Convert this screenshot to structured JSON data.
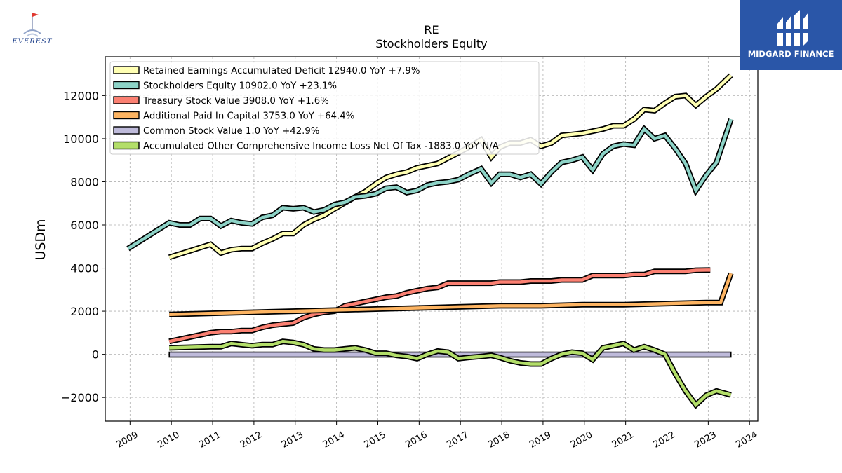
{
  "logos": {
    "left_text": "EVEREST",
    "right_text": "MIDGARD FINANCE",
    "right_bg": "#2a56a8"
  },
  "chart_data": {
    "type": "line",
    "title": "RE",
    "subtitle": "Stockholders  Equity",
    "ylabel": "USDm",
    "xlabel": "",
    "xlim": [
      2008.4,
      2024.2
    ],
    "ylim": [
      -3100,
      13800
    ],
    "yticks": [
      -2000,
      0,
      2000,
      4000,
      6000,
      8000,
      10000,
      12000
    ],
    "ytick_labels": [
      "−2000",
      "0",
      "2000",
      "4000",
      "6000",
      "8000",
      "10000",
      "12000"
    ],
    "xticks": [
      2009,
      2010,
      2011,
      2012,
      2013,
      2014,
      2015,
      2016,
      2017,
      2018,
      2019,
      2020,
      2021,
      2022,
      2023,
      2024
    ],
    "xtick_labels": [
      "2009",
      "2010",
      "2011",
      "2012",
      "2013",
      "2014",
      "2015",
      "2016",
      "2017",
      "2018",
      "2019",
      "2020",
      "2021",
      "2022",
      "2023",
      "2024"
    ],
    "grid": true,
    "legend_position": "top-left",
    "series": [
      {
        "name": "Retained Earnings Accumulated Deficit  12940.0 YoY +7.9%",
        "color": "#ffffb3",
        "points": [
          [
            2009.95,
            4500
          ],
          [
            2010.95,
            5100
          ],
          [
            2011.2,
            4700
          ],
          [
            2011.45,
            4850
          ],
          [
            2011.7,
            4900
          ],
          [
            2011.95,
            4900
          ],
          [
            2012.2,
            5150
          ],
          [
            2012.45,
            5350
          ],
          [
            2012.7,
            5600
          ],
          [
            2012.95,
            5600
          ],
          [
            2013.2,
            6000
          ],
          [
            2013.45,
            6250
          ],
          [
            2013.7,
            6450
          ],
          [
            2013.95,
            6750
          ],
          [
            2014.45,
            7300
          ],
          [
            2014.7,
            7550
          ],
          [
            2014.95,
            7900
          ],
          [
            2015.2,
            8200
          ],
          [
            2015.45,
            8350
          ],
          [
            2015.7,
            8450
          ],
          [
            2015.95,
            8650
          ],
          [
            2016.2,
            8750
          ],
          [
            2016.45,
            8850
          ],
          [
            2016.7,
            9100
          ],
          [
            2016.95,
            9350
          ],
          [
            2017.2,
            9600
          ],
          [
            2017.5,
            9950
          ],
          [
            2017.75,
            9150
          ],
          [
            2017.95,
            9600
          ],
          [
            2018.2,
            9800
          ],
          [
            2018.45,
            9800
          ],
          [
            2018.7,
            9950
          ],
          [
            2018.95,
            9650
          ],
          [
            2019.2,
            9800
          ],
          [
            2019.45,
            10150
          ],
          [
            2019.7,
            10200
          ],
          [
            2019.95,
            10250
          ],
          [
            2020.2,
            10350
          ],
          [
            2020.45,
            10450
          ],
          [
            2020.7,
            10600
          ],
          [
            2020.95,
            10600
          ],
          [
            2021.2,
            10900
          ],
          [
            2021.45,
            11350
          ],
          [
            2021.7,
            11300
          ],
          [
            2021.95,
            11650
          ],
          [
            2022.2,
            11950
          ],
          [
            2022.45,
            12000
          ],
          [
            2022.7,
            11550
          ],
          [
            2022.95,
            11950
          ],
          [
            2023.2,
            12300
          ],
          [
            2023.55,
            12940
          ]
        ]
      },
      {
        "name": "Stockholders Equity  10902.0 YoY +23.1%",
        "color": "#8dd3c7",
        "points": [
          [
            2008.95,
            4900
          ],
          [
            2009.95,
            6100
          ],
          [
            2010.2,
            6000
          ],
          [
            2010.45,
            6000
          ],
          [
            2010.7,
            6300
          ],
          [
            2010.95,
            6300
          ],
          [
            2011.2,
            5950
          ],
          [
            2011.45,
            6200
          ],
          [
            2011.7,
            6100
          ],
          [
            2011.95,
            6050
          ],
          [
            2012.2,
            6350
          ],
          [
            2012.45,
            6450
          ],
          [
            2012.7,
            6800
          ],
          [
            2012.95,
            6750
          ],
          [
            2013.2,
            6800
          ],
          [
            2013.45,
            6600
          ],
          [
            2013.7,
            6700
          ],
          [
            2013.95,
            6950
          ],
          [
            2014.2,
            7050
          ],
          [
            2014.45,
            7300
          ],
          [
            2014.7,
            7350
          ],
          [
            2014.95,
            7450
          ],
          [
            2015.2,
            7700
          ],
          [
            2015.45,
            7750
          ],
          [
            2015.7,
            7500
          ],
          [
            2015.95,
            7600
          ],
          [
            2016.2,
            7850
          ],
          [
            2016.45,
            7950
          ],
          [
            2016.7,
            8000
          ],
          [
            2016.95,
            8100
          ],
          [
            2017.2,
            8350
          ],
          [
            2017.5,
            8600
          ],
          [
            2017.75,
            7950
          ],
          [
            2017.95,
            8350
          ],
          [
            2018.2,
            8350
          ],
          [
            2018.45,
            8200
          ],
          [
            2018.7,
            8350
          ],
          [
            2018.95,
            7900
          ],
          [
            2019.2,
            8450
          ],
          [
            2019.45,
            8900
          ],
          [
            2019.7,
            9000
          ],
          [
            2019.95,
            9150
          ],
          [
            2020.2,
            8550
          ],
          [
            2020.45,
            9300
          ],
          [
            2020.7,
            9650
          ],
          [
            2020.95,
            9750
          ],
          [
            2021.2,
            9700
          ],
          [
            2021.45,
            10450
          ],
          [
            2021.7,
            10000
          ],
          [
            2021.95,
            10150
          ],
          [
            2022.2,
            9550
          ],
          [
            2022.45,
            8850
          ],
          [
            2022.7,
            7600
          ],
          [
            2022.95,
            8300
          ],
          [
            2023.2,
            8900
          ],
          [
            2023.55,
            10902
          ]
        ]
      },
      {
        "name": "Treasury Stock Value  3908.0 YoY +1.6%",
        "color": "#fb8072",
        "points": [
          [
            2009.95,
            600
          ],
          [
            2010.95,
            1000
          ],
          [
            2011.2,
            1050
          ],
          [
            2011.45,
            1050
          ],
          [
            2011.7,
            1100
          ],
          [
            2011.95,
            1100
          ],
          [
            2012.2,
            1250
          ],
          [
            2012.45,
            1350
          ],
          [
            2012.7,
            1400
          ],
          [
            2012.95,
            1450
          ],
          [
            2013.2,
            1700
          ],
          [
            2013.45,
            1850
          ],
          [
            2013.7,
            1950
          ],
          [
            2013.95,
            2000
          ],
          [
            2014.2,
            2250
          ],
          [
            2014.45,
            2350
          ],
          [
            2014.7,
            2450
          ],
          [
            2014.95,
            2550
          ],
          [
            2015.2,
            2650
          ],
          [
            2015.45,
            2700
          ],
          [
            2015.7,
            2850
          ],
          [
            2015.95,
            2950
          ],
          [
            2016.2,
            3050
          ],
          [
            2016.45,
            3100
          ],
          [
            2016.7,
            3300
          ],
          [
            2016.95,
            3300
          ],
          [
            2017.2,
            3300
          ],
          [
            2017.5,
            3300
          ],
          [
            2017.75,
            3300
          ],
          [
            2017.95,
            3350
          ],
          [
            2018.2,
            3350
          ],
          [
            2018.45,
            3350
          ],
          [
            2018.7,
            3400
          ],
          [
            2018.95,
            3400
          ],
          [
            2019.2,
            3400
          ],
          [
            2019.45,
            3450
          ],
          [
            2019.7,
            3450
          ],
          [
            2019.95,
            3450
          ],
          [
            2020.2,
            3650
          ],
          [
            2020.45,
            3650
          ],
          [
            2020.7,
            3650
          ],
          [
            2020.95,
            3650
          ],
          [
            2021.2,
            3700
          ],
          [
            2021.45,
            3700
          ],
          [
            2021.7,
            3850
          ],
          [
            2021.95,
            3850
          ],
          [
            2022.2,
            3850
          ],
          [
            2022.45,
            3850
          ],
          [
            2022.7,
            3900
          ],
          [
            2022.95,
            3908
          ],
          [
            2023.05,
            3908
          ]
        ]
      },
      {
        "name": "Additional Paid In Capital  3753.0 YoY +64.4%",
        "color": "#fdb462",
        "points": [
          [
            2009.95,
            1850
          ],
          [
            2011.95,
            1950
          ],
          [
            2012.95,
            2000
          ],
          [
            2013.95,
            2050
          ],
          [
            2014.95,
            2100
          ],
          [
            2015.95,
            2150
          ],
          [
            2016.95,
            2200
          ],
          [
            2017.95,
            2250
          ],
          [
            2018.95,
            2250
          ],
          [
            2019.95,
            2300
          ],
          [
            2020.95,
            2300
          ],
          [
            2021.95,
            2350
          ],
          [
            2022.95,
            2400
          ],
          [
            2023.3,
            2400
          ],
          [
            2023.55,
            3753
          ]
        ]
      },
      {
        "name": "Common Stock Value  1.0 YoY +42.9%",
        "color": "#bebada",
        "box": {
          "x0": 2009.95,
          "x1": 2023.55,
          "y0": 0,
          "y1": 100
        }
      },
      {
        "name": "Accumulated Other Comprehensive Income Loss Net Of Tax  -1883.0 YoY N/A",
        "color": "#b3de69",
        "points": [
          [
            2009.95,
            300
          ],
          [
            2010.95,
            350
          ],
          [
            2011.2,
            350
          ],
          [
            2011.45,
            500
          ],
          [
            2011.7,
            450
          ],
          [
            2011.95,
            400
          ],
          [
            2012.2,
            450
          ],
          [
            2012.45,
            450
          ],
          [
            2012.7,
            600
          ],
          [
            2012.95,
            550
          ],
          [
            2013.2,
            450
          ],
          [
            2013.45,
            250
          ],
          [
            2013.7,
            200
          ],
          [
            2013.95,
            200
          ],
          [
            2014.2,
            250
          ],
          [
            2014.45,
            300
          ],
          [
            2014.7,
            200
          ],
          [
            2014.95,
            50
          ],
          [
            2015.2,
            50
          ],
          [
            2015.45,
            -50
          ],
          [
            2015.7,
            -100
          ],
          [
            2015.95,
            -200
          ],
          [
            2016.2,
            0
          ],
          [
            2016.45,
            150
          ],
          [
            2016.7,
            100
          ],
          [
            2016.95,
            -200
          ],
          [
            2017.2,
            -150
          ],
          [
            2017.5,
            -100
          ],
          [
            2017.75,
            -50
          ],
          [
            2017.95,
            -150
          ],
          [
            2018.2,
            -300
          ],
          [
            2018.45,
            -400
          ],
          [
            2018.7,
            -450
          ],
          [
            2018.95,
            -450
          ],
          [
            2019.2,
            -200
          ],
          [
            2019.45,
            0
          ],
          [
            2019.7,
            100
          ],
          [
            2019.95,
            50
          ],
          [
            2020.2,
            -250
          ],
          [
            2020.45,
            300
          ],
          [
            2020.7,
            400
          ],
          [
            2020.95,
            500
          ],
          [
            2021.2,
            200
          ],
          [
            2021.45,
            350
          ],
          [
            2021.7,
            200
          ],
          [
            2021.95,
            0
          ],
          [
            2022.2,
            -900
          ],
          [
            2022.45,
            -1700
          ],
          [
            2022.7,
            -2350
          ],
          [
            2022.95,
            -1900
          ],
          [
            2023.2,
            -1700
          ],
          [
            2023.55,
            -1883
          ]
        ]
      }
    ]
  }
}
